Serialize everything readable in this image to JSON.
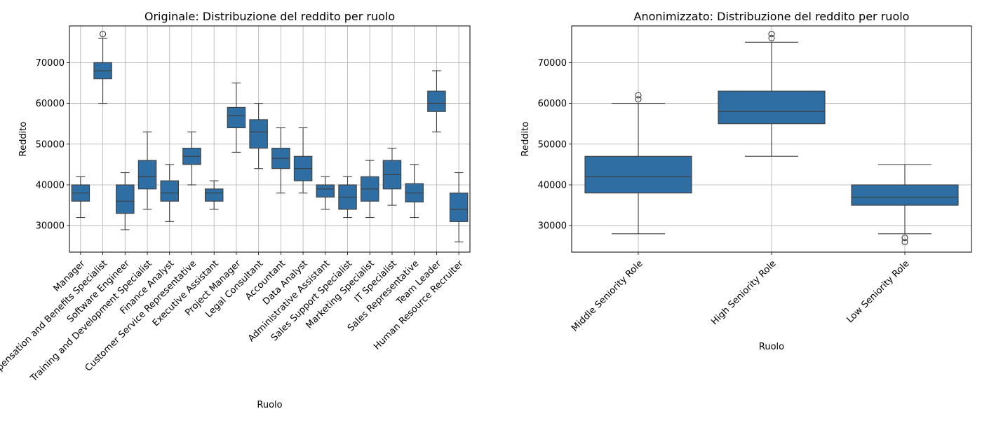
{
  "chart_data": [
    {
      "type": "box",
      "title": "Originale: Distribuzione del reddito per ruolo",
      "xlabel": "Ruolo",
      "ylabel": "Reddito",
      "ylim": [
        23500,
        79000
      ],
      "yticks": [
        30000,
        40000,
        50000,
        60000,
        70000
      ],
      "grid": true,
      "color": "#2f6ea3",
      "categories": [
        "Manager",
        "Compensation and Benefits Specialist",
        "Software Engineer",
        "Training and Development Specialist",
        "Finance Analyst",
        "Customer Service Representative",
        "Executive Assistant",
        "Project Manager",
        "Legal Consultant",
        "Accountant",
        "Data Analyst",
        "Administrative Assistant",
        "Sales Support Specialist",
        "Marketing Specialist",
        "IT Specialist",
        "Sales Representative",
        "Team Leader",
        "Human Resource Recruiter"
      ],
      "boxes": [
        {
          "whislo": 32000,
          "q1": 36000,
          "med": 38000,
          "q3": 40000,
          "whishi": 42000,
          "fliers": []
        },
        {
          "whislo": 60000,
          "q1": 66000,
          "med": 68000,
          "q3": 70000,
          "whishi": 76000,
          "fliers": [
            77000
          ]
        },
        {
          "whislo": 29000,
          "q1": 33000,
          "med": 36000,
          "q3": 40000,
          "whishi": 43000,
          "fliers": []
        },
        {
          "whislo": 34000,
          "q1": 39000,
          "med": 42000,
          "q3": 46000,
          "whishi": 53000,
          "fliers": []
        },
        {
          "whislo": 31000,
          "q1": 36000,
          "med": 38000,
          "q3": 41000,
          "whishi": 45000,
          "fliers": []
        },
        {
          "whislo": 40000,
          "q1": 45000,
          "med": 47000,
          "q3": 49000,
          "whishi": 53000,
          "fliers": []
        },
        {
          "whislo": 34000,
          "q1": 36000,
          "med": 38000,
          "q3": 39000,
          "whishi": 41000,
          "fliers": []
        },
        {
          "whislo": 48000,
          "q1": 54000,
          "med": 57000,
          "q3": 59000,
          "whishi": 65000,
          "fliers": []
        },
        {
          "whislo": 44000,
          "q1": 49000,
          "med": 53000,
          "q3": 56000,
          "whishi": 60000,
          "fliers": []
        },
        {
          "whislo": 38000,
          "q1": 44000,
          "med": 46500,
          "q3": 49000,
          "whishi": 54000,
          "fliers": []
        },
        {
          "whislo": 38000,
          "q1": 41000,
          "med": 44000,
          "q3": 47000,
          "whishi": 54000,
          "fliers": []
        },
        {
          "whislo": 34000,
          "q1": 37000,
          "med": 39000,
          "q3": 40000,
          "whishi": 42000,
          "fliers": []
        },
        {
          "whislo": 32000,
          "q1": 34000,
          "med": 37000,
          "q3": 40000,
          "whishi": 42000,
          "fliers": []
        },
        {
          "whislo": 32000,
          "q1": 36000,
          "med": 39000,
          "q3": 42000,
          "whishi": 46000,
          "fliers": []
        },
        {
          "whislo": 35000,
          "q1": 39000,
          "med": 42500,
          "q3": 46000,
          "whishi": 49000,
          "fliers": []
        },
        {
          "whislo": 32000,
          "q1": 35800,
          "med": 38000,
          "q3": 40300,
          "whishi": 45000,
          "fliers": []
        },
        {
          "whislo": 53000,
          "q1": 58000,
          "med": 60000,
          "q3": 63000,
          "whishi": 68000,
          "fliers": []
        },
        {
          "whislo": 26000,
          "q1": 31000,
          "med": 34000,
          "q3": 38000,
          "whishi": 43000,
          "fliers": []
        }
      ]
    },
    {
      "type": "box",
      "title": "Anonimizzato: Distribuzione del reddito per ruolo",
      "xlabel": "Ruolo",
      "ylabel": "Reddito",
      "ylim": [
        23500,
        79000
      ],
      "yticks": [
        30000,
        40000,
        50000,
        60000,
        70000
      ],
      "grid": true,
      "color": "#2f6ea3",
      "categories": [
        "Middle Seniority Role",
        "High Seniority Role",
        "Low Seniority Role"
      ],
      "boxes": [
        {
          "whislo": 28000,
          "q1": 38000,
          "med": 42000,
          "q3": 47000,
          "whishi": 60000,
          "fliers": [
            61000,
            62000
          ]
        },
        {
          "whislo": 47000,
          "q1": 55000,
          "med": 58000,
          "q3": 63000,
          "whishi": 75000,
          "fliers": [
            76000,
            77000
          ]
        },
        {
          "whislo": 28000,
          "q1": 35000,
          "med": 37000,
          "q3": 40000,
          "whishi": 45000,
          "fliers": [
            26000,
            27000
          ]
        }
      ]
    }
  ]
}
